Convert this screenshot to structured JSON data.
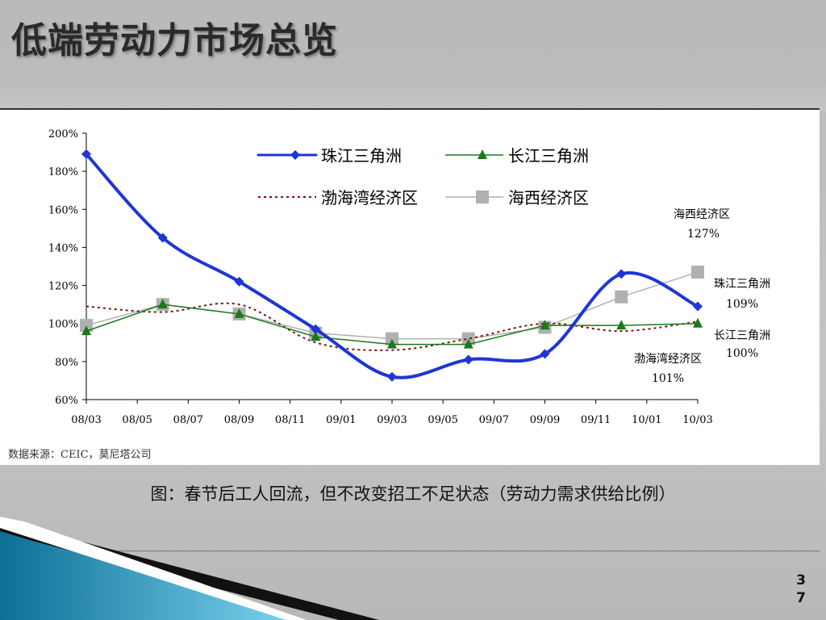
{
  "slide": {
    "title": "低端劳动力市场总览",
    "caption": "图：春节后工人回流，但不改变招工不足状态（劳动力需求供给比例）",
    "page_number": "3\n7"
  },
  "colors": {
    "pearl_river": "#1f35d6",
    "yangtze": "#1a7a1a",
    "bohai": "#7a1010",
    "haixi": "#b0b0b0"
  },
  "chart_data": {
    "type": "line",
    "source": "数据来源：CEIC，莫尼塔公司",
    "x_ticks": [
      "08/03",
      "08/05",
      "08/07",
      "08/09",
      "08/11",
      "09/01",
      "09/03",
      "09/05",
      "09/07",
      "09/09",
      "09/11",
      "10/01",
      "10/03"
    ],
    "y_ticks": [
      "200%",
      "180%",
      "160%",
      "140%",
      "120%",
      "100%",
      "80%",
      "60%"
    ],
    "ylim": [
      60,
      200
    ],
    "series": [
      {
        "name": "珠江三角洲",
        "key": "pearl_river",
        "style": "thick-line-diamond",
        "points": [
          [
            "08/03",
            189
          ],
          [
            "08/06",
            145
          ],
          [
            "08/09",
            122
          ],
          [
            "08/12",
            97
          ],
          [
            "09/03",
            72
          ],
          [
            "09/06",
            81
          ],
          [
            "09/09",
            84
          ],
          [
            "09/12",
            126
          ],
          [
            "10/03",
            109
          ]
        ],
        "end_label": "珠江三角洲",
        "end_value": "109%"
      },
      {
        "name": "长江三角洲",
        "key": "yangtze",
        "style": "line-triangle",
        "points": [
          [
            "08/03",
            96
          ],
          [
            "08/06",
            110
          ],
          [
            "08/09",
            105
          ],
          [
            "08/12",
            93
          ],
          [
            "09/03",
            89
          ],
          [
            "09/06",
            89
          ],
          [
            "09/09",
            99
          ],
          [
            "09/12",
            99
          ],
          [
            "10/03",
            100
          ]
        ],
        "end_label": "长江三角洲",
        "end_value": "100%"
      },
      {
        "name": "渤海湾经济区",
        "key": "bohai",
        "style": "dotted",
        "points": [
          [
            "08/03",
            109
          ],
          [
            "08/06",
            106
          ],
          [
            "08/09",
            110
          ],
          [
            "08/12",
            90
          ],
          [
            "09/03",
            86
          ],
          [
            "09/06",
            92
          ],
          [
            "09/09",
            100
          ],
          [
            "09/12",
            96
          ],
          [
            "10/03",
            101
          ]
        ],
        "end_label": "渤海湾经济区",
        "end_value": "101%"
      },
      {
        "name": "海西经济区",
        "key": "haixi",
        "style": "thin-line-square",
        "points": [
          [
            "08/03",
            99
          ],
          [
            "08/06",
            110
          ],
          [
            "08/09",
            105
          ],
          [
            "08/12",
            95
          ],
          [
            "09/03",
            92
          ],
          [
            "09/06",
            92
          ],
          [
            "09/09",
            98
          ],
          [
            "09/12",
            114
          ],
          [
            "10/03",
            127
          ]
        ],
        "end_label": "海西经济区",
        "end_value": "127%"
      }
    ]
  }
}
